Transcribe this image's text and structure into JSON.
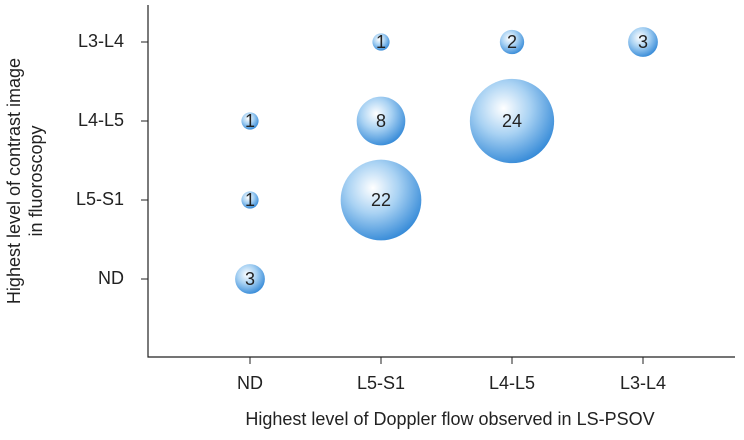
{
  "chart_data": {
    "type": "bubble",
    "x_label": "Highest level of Doppler flow observed in LS-PSOV",
    "y_label": [
      "Highest level of contrast image",
      "in fluoroscopy"
    ],
    "x_categories": [
      "ND",
      "L5-S1",
      "L4-L5",
      "L3-L4"
    ],
    "y_categories": [
      "ND",
      "L5-S1",
      "L4-L5",
      "L3-L4"
    ],
    "color": "#2f86d6",
    "points": [
      {
        "x": "L5-S1",
        "y": "L3-L4",
        "value": 1
      },
      {
        "x": "L4-L5",
        "y": "L3-L4",
        "value": 2
      },
      {
        "x": "L3-L4",
        "y": "L3-L4",
        "value": 3
      },
      {
        "x": "ND",
        "y": "L4-L5",
        "value": 1
      },
      {
        "x": "L5-S1",
        "y": "L4-L5",
        "value": 8
      },
      {
        "x": "L4-L5",
        "y": "L4-L5",
        "value": 24
      },
      {
        "x": "ND",
        "y": "L5-S1",
        "value": 1
      },
      {
        "x": "L5-S1",
        "y": "L5-S1",
        "value": 22
      },
      {
        "x": "ND",
        "y": "ND",
        "value": 3
      }
    ]
  }
}
